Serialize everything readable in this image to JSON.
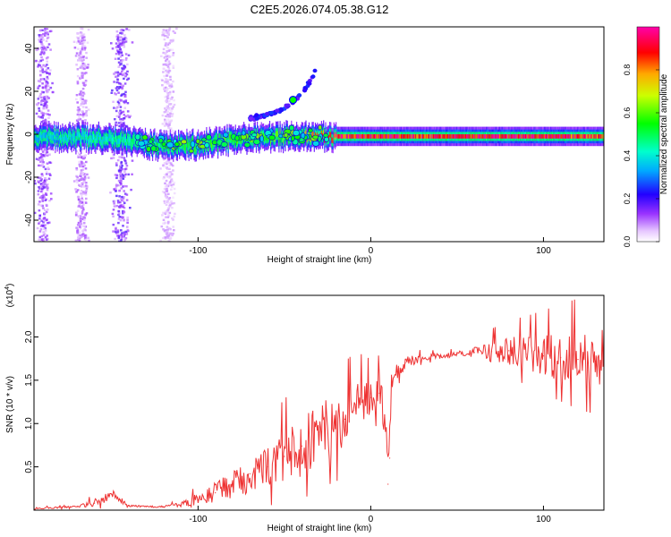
{
  "figure_title": "C2E5.2026.074.05.38.G12",
  "chart_data": [
    {
      "type": "heatmap",
      "title": "C2E5.2026.074.05.38.G12",
      "xlabel": "Height of straight line (km)",
      "ylabel": "Frequency (Hz)",
      "xlim": [
        -195,
        135
      ],
      "ylim": [
        -50,
        50
      ],
      "x_ticks": [
        -100,
        0,
        100
      ],
      "y_ticks": [
        -40,
        -20,
        0,
        20,
        40
      ],
      "x_tick_labels": [
        "-100",
        "0",
        "100"
      ],
      "y_tick_labels": [
        "-40",
        "-20",
        "0",
        "20",
        "40"
      ],
      "colorbar": {
        "label": "Normalized spectral amplitude",
        "range": [
          0.0,
          1.0
        ],
        "ticks": [
          0.0,
          0.2,
          0.4,
          0.6,
          0.8
        ],
        "tick_labels": [
          "0.0",
          "0.2",
          "0.4",
          "0.6",
          "0.8"
        ],
        "colormap": [
          "#ffffff",
          "#cc88ff",
          "#7700ee",
          "#0000ff",
          "#00ffff",
          "#00ff00",
          "#ffff00",
          "#ff8800",
          "#ff0000",
          "#ff00aa"
        ]
      },
      "ridge": {
        "description_values_height_km": [
          -195,
          -150,
          -125,
          -100,
          -75,
          -50,
          -25,
          0,
          25,
          50,
          75,
          100,
          135
        ],
        "center_frequency_hz": [
          -1,
          -2,
          -5,
          -5,
          -2,
          -1,
          -1,
          -1,
          -1,
          -1,
          -1,
          -1,
          -1
        ],
        "peak_amplitude": [
          0.35,
          0.4,
          0.5,
          0.55,
          0.6,
          0.6,
          0.9,
          0.95,
          0.9,
          0.95,
          0.95,
          0.95,
          0.85
        ]
      },
      "branch": {
        "height_km": [
          -70,
          -60,
          -50,
          -45,
          -40,
          -35,
          -30
        ],
        "frequency_hz": [
          7,
          9,
          12,
          15,
          19,
          25,
          32
        ]
      }
    },
    {
      "type": "line",
      "xlabel": "Height of straight line (km)",
      "ylabel": "SNR (10 * v/v)",
      "exponent_label": "(x10",
      "exponent_value": "4",
      "exponent_close": ")",
      "xlim": [
        -195,
        135
      ],
      "ylim": [
        0,
        2.48
      ],
      "x_ticks": [
        -100,
        0,
        100
      ],
      "y_ticks": [
        0.5,
        1.0,
        1.5,
        2.0
      ],
      "x_tick_labels": [
        "-100",
        "0",
        "100"
      ],
      "y_tick_labels": [
        "0.5",
        "1.0",
        "1.5",
        "2.0"
      ],
      "line_color": "#ee3333",
      "series": [
        {
          "name": "SNR",
          "x": [
            -195,
            -180,
            -170,
            -160,
            -150,
            -145,
            -140,
            -130,
            -120,
            -110,
            -100,
            -90,
            -80,
            -70,
            -60,
            -50,
            -40,
            -30,
            -20,
            -15,
            -10,
            -5,
            0,
            5,
            8,
            10,
            11,
            12,
            15,
            20,
            30,
            40,
            50,
            60,
            70,
            80,
            90,
            100,
            110,
            120,
            130,
            135
          ],
          "y": [
            0.02,
            0.03,
            0.04,
            0.08,
            0.18,
            0.12,
            0.05,
            0.04,
            0.04,
            0.06,
            0.12,
            0.2,
            0.32,
            0.42,
            0.5,
            0.62,
            0.74,
            0.9,
            0.95,
            1.05,
            1.15,
            1.25,
            1.3,
            1.35,
            1.1,
            0.3,
            0.6,
            1.45,
            1.6,
            1.7,
            1.76,
            1.78,
            1.8,
            1.82,
            1.83,
            1.84,
            1.8,
            1.78,
            1.76,
            1.74,
            1.72,
            1.75
          ],
          "noise_amplitude": [
            0.01,
            0.01,
            0.01,
            0.05,
            0.06,
            0.04,
            0.01,
            0.01,
            0.01,
            0.03,
            0.08,
            0.12,
            0.18,
            0.22,
            0.25,
            0.3,
            0.35,
            0.35,
            0.35,
            0.3,
            0.3,
            0.25,
            0.2,
            0.2,
            0.3,
            0.4,
            0.4,
            0.15,
            0.1,
            0.07,
            0.04,
            0.03,
            0.03,
            0.06,
            0.12,
            0.16,
            0.2,
            0.24,
            0.28,
            0.32,
            0.34,
            0.34
          ]
        }
      ]
    }
  ]
}
